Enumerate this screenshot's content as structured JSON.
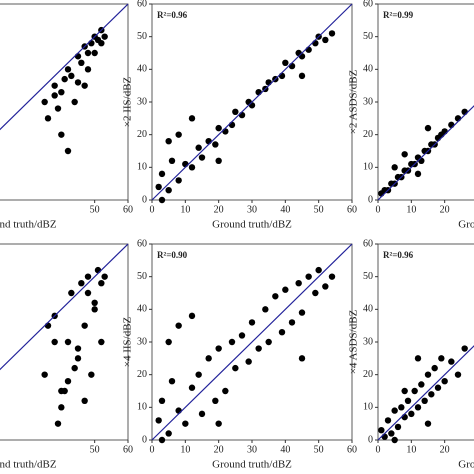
{
  "chart_data": [
    {
      "type": "scatter",
      "x_label": "nd truth/dBZ",
      "xlim": [
        0,
        60
      ],
      "ylim": [
        0,
        60
      ],
      "xticks": [
        50,
        60
      ],
      "x": [
        35,
        38,
        40,
        42,
        43,
        45,
        46,
        47,
        48,
        49,
        50,
        51,
        52,
        53,
        40,
        44,
        48,
        36,
        39,
        45,
        50,
        42,
        47,
        52,
        38,
        41
      ],
      "y": [
        30,
        35,
        33,
        40,
        38,
        44,
        42,
        47,
        45,
        48,
        50,
        49,
        52,
        50,
        20,
        30,
        40,
        25,
        28,
        36,
        45,
        15,
        35,
        48,
        32,
        37
      ]
    },
    {
      "type": "scatter",
      "annotation": "R²=0.96",
      "x_label": "Ground truth/dBZ",
      "y_label": "×2 IIS/dBZ",
      "xlim": [
        0,
        60
      ],
      "ylim": [
        0,
        60
      ],
      "xticks": [
        0,
        10,
        20,
        30,
        40,
        50,
        60
      ],
      "yticks": [
        0,
        10,
        20,
        30,
        40,
        50,
        60
      ],
      "x": [
        2,
        3,
        5,
        6,
        8,
        10,
        12,
        14,
        15,
        17,
        19,
        20,
        22,
        24,
        25,
        27,
        29,
        30,
        32,
        34,
        35,
        37,
        39,
        40,
        42,
        44,
        45,
        47,
        49,
        50,
        52,
        54,
        5,
        8,
        12,
        3,
        20,
        45
      ],
      "y": [
        4,
        8,
        3,
        12,
        6,
        11,
        10,
        16,
        13,
        18,
        17,
        22,
        21,
        23,
        27,
        26,
        30,
        29,
        33,
        34,
        36,
        37,
        38,
        42,
        41,
        45,
        44,
        46,
        48,
        50,
        49,
        51,
        18,
        20,
        25,
        0,
        12,
        38
      ]
    },
    {
      "type": "scatter",
      "annotation": "R²=0.99",
      "x_label": "Ground t",
      "y_label": "×2 ASDS/dBZ",
      "xlim": [
        0,
        60
      ],
      "ylim": [
        0,
        60
      ],
      "xticks": [
        0,
        10,
        20
      ],
      "yticks": [
        0,
        10,
        20,
        30,
        40,
        50,
        60
      ],
      "x": [
        1,
        2,
        3,
        4,
        5,
        6,
        7,
        8,
        9,
        10,
        11,
        12,
        13,
        14,
        15,
        16,
        17,
        18,
        19,
        20,
        22,
        24,
        26,
        5,
        8,
        12,
        15
      ],
      "y": [
        2,
        3,
        3,
        5,
        5,
        7,
        7,
        9,
        9,
        11,
        11,
        13,
        12,
        15,
        15,
        17,
        17,
        19,
        20,
        21,
        23,
        25,
        27,
        10,
        14,
        8,
        22
      ]
    },
    {
      "type": "scatter",
      "x_label": "nd truth/dBZ",
      "xlim": [
        0,
        60
      ],
      "ylim": [
        0,
        60
      ],
      "xticks": [
        50,
        60
      ],
      "x": [
        35,
        38,
        40,
        42,
        43,
        45,
        46,
        47,
        48,
        49,
        50,
        51,
        52,
        53,
        40,
        44,
        48,
        36,
        39,
        45,
        50,
        42,
        47,
        52,
        38,
        41
      ],
      "y": [
        20,
        38,
        15,
        30,
        45,
        25,
        48,
        35,
        50,
        20,
        42,
        52,
        30,
        50,
        10,
        22,
        45,
        35,
        5,
        28,
        40,
        18,
        12,
        48,
        30,
        15
      ]
    },
    {
      "type": "scatter",
      "annotation": "R²=0.90",
      "x_label": "Ground truth/dBZ",
      "y_label": "×4 IIS/dBZ",
      "xlim": [
        0,
        60
      ],
      "ylim": [
        0,
        60
      ],
      "xticks": [
        0,
        10,
        20,
        30,
        40,
        50,
        60
      ],
      "yticks": [
        0,
        10,
        20,
        30,
        40,
        50,
        60
      ],
      "x": [
        2,
        3,
        5,
        6,
        8,
        10,
        12,
        14,
        15,
        17,
        19,
        20,
        22,
        24,
        25,
        27,
        29,
        30,
        32,
        34,
        35,
        37,
        39,
        40,
        42,
        44,
        45,
        47,
        49,
        50,
        52,
        54,
        5,
        8,
        12,
        3,
        20,
        45
      ],
      "y": [
        6,
        12,
        2,
        18,
        9,
        5,
        16,
        20,
        8,
        25,
        12,
        28,
        15,
        30,
        22,
        32,
        24,
        36,
        28,
        40,
        30,
        44,
        33,
        46,
        36,
        48,
        39,
        50,
        45,
        52,
        47,
        50,
        30,
        35,
        38,
        0,
        5,
        25
      ]
    },
    {
      "type": "scatter",
      "annotation": "R²=0.96",
      "x_label": "Ground t",
      "y_label": "×4 ASDS/dBZ",
      "xlim": [
        0,
        60
      ],
      "ylim": [
        0,
        60
      ],
      "xticks": [
        0,
        10,
        20
      ],
      "yticks": [
        0,
        10,
        20,
        30,
        40,
        50,
        60
      ],
      "x": [
        1,
        2,
        3,
        4,
        5,
        6,
        7,
        8,
        9,
        10,
        11,
        12,
        13,
        14,
        15,
        16,
        17,
        18,
        19,
        20,
        22,
        24,
        26,
        5,
        8,
        12,
        15
      ],
      "y": [
        3,
        1,
        6,
        2,
        9,
        4,
        10,
        7,
        12,
        8,
        15,
        10,
        17,
        12,
        20,
        14,
        22,
        16,
        25,
        18,
        24,
        20,
        28,
        0,
        15,
        25,
        5
      ]
    }
  ]
}
